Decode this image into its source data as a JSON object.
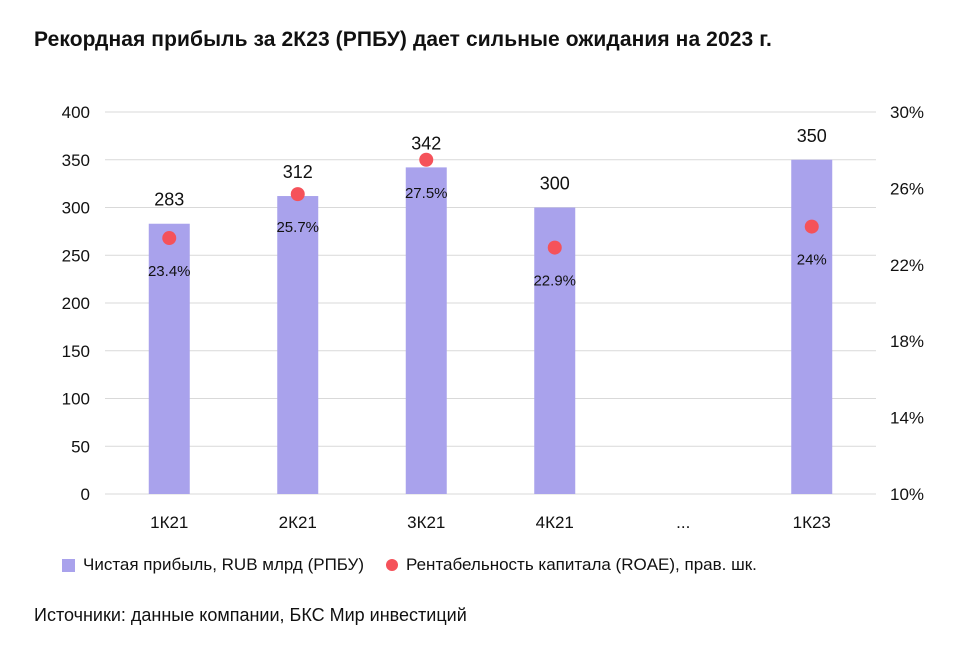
{
  "title": "Рекордная прибыль за 2К23 (РПБУ) дает сильные ожидания на 2023 г.",
  "source": "Источники: данные компании, БКС Мир инвестиций",
  "colors": {
    "bar": "#a9a2ec",
    "dot": "#f5525a",
    "grid": "#d9d9d9"
  },
  "chart_data": {
    "type": "bar",
    "categories": [
      "1К21",
      "2К21",
      "3К21",
      "4К21",
      "...",
      "1К23"
    ],
    "series": [
      {
        "name": "Чистая прибыль, RUB млрд (РПБУ)",
        "type": "bar",
        "axis": "left",
        "values": [
          283,
          312,
          342,
          300,
          null,
          350
        ],
        "labels": [
          "283",
          "312",
          "342",
          "300",
          "",
          "350"
        ]
      },
      {
        "name": "Рентабельность капитала (ROAE), прав. шк.",
        "type": "scatter",
        "axis": "right",
        "values": [
          23.4,
          25.7,
          27.5,
          22.9,
          null,
          24
        ],
        "labels": [
          "23.4%",
          "25.7%",
          "27.5%",
          "22.9%",
          "",
          "24%"
        ]
      }
    ],
    "y_left": {
      "ylim": [
        0,
        400
      ],
      "ticks": [
        "0",
        "50",
        "100",
        "150",
        "200",
        "250",
        "300",
        "350",
        "400"
      ]
    },
    "y_right": {
      "ylim": [
        10,
        30
      ],
      "ticks": [
        "10%",
        "14%",
        "18%",
        "22%",
        "26%",
        "30%"
      ]
    },
    "grid": true,
    "legend": "bottom"
  }
}
